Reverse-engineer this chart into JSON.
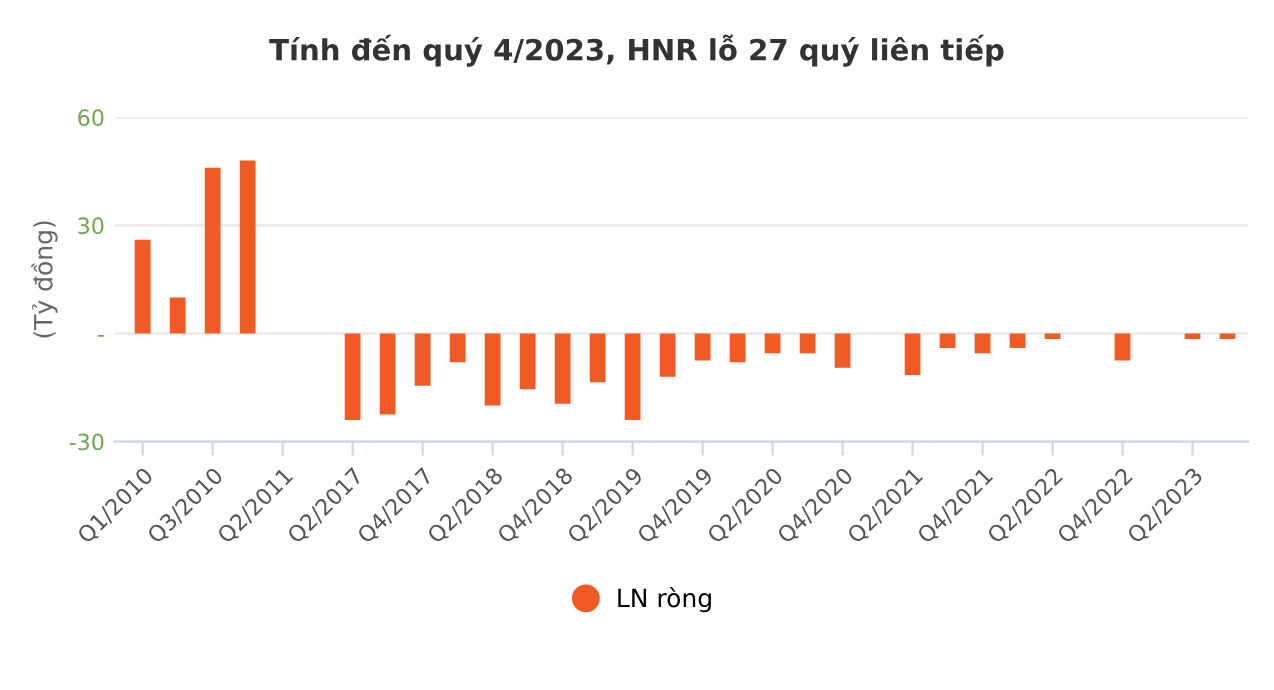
{
  "chart_data": {
    "type": "bar",
    "title": "Tính đến quý 4/2023, HNR lỗ 27 quý liên tiếp",
    "ylabel": "(Tỷ đồng)",
    "categories": [
      "Q1/2010",
      null,
      "Q3/2010",
      null,
      "Q2/2011",
      null,
      "Q2/2017",
      null,
      "Q4/2017",
      null,
      "Q2/2018",
      null,
      "Q4/2018",
      null,
      "Q2/2019",
      null,
      "Q4/2019",
      null,
      "Q2/2020",
      null,
      "Q4/2020",
      null,
      "Q2/2021",
      null,
      "Q4/2021",
      null,
      "Q2/2022",
      null,
      "Q4/2022",
      null,
      "Q2/2023",
      null
    ],
    "series": [
      {
        "name": "LN ròng",
        "color": "#f15a22",
        "values": [
          26,
          10,
          46,
          48,
          null,
          null,
          -24,
          -22.5,
          -14.5,
          -8,
          -20,
          -15.5,
          -19.5,
          -13.5,
          -24,
          -12,
          -7.5,
          -8,
          -5.5,
          -5.5,
          -9.5,
          null,
          -11.5,
          -4,
          -5.5,
          -4,
          -1.5,
          null,
          -7.5,
          null,
          -1.5,
          -1.5
        ]
      }
    ],
    "ylim": [
      -30,
      60
    ],
    "yticks": [
      60,
      30,
      {
        "value": 0,
        "label": "-"
      },
      -30
    ],
    "grid": "y",
    "legend": "bottom"
  }
}
